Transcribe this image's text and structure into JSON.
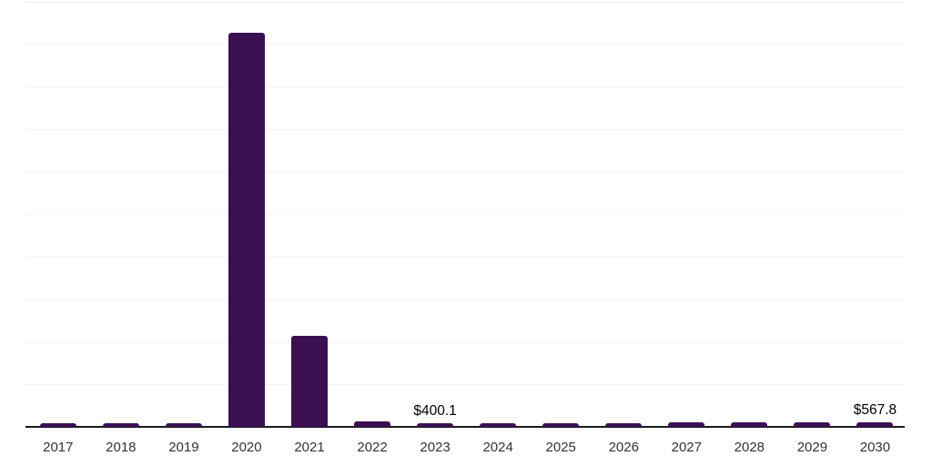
{
  "chart_data": {
    "type": "bar",
    "title": "",
    "xlabel": "",
    "ylabel": "",
    "categories": [
      "2017",
      "2018",
      "2019",
      "2020",
      "2021",
      "2022",
      "2023",
      "2024",
      "2025",
      "2026",
      "2027",
      "2028",
      "2029",
      "2030"
    ],
    "values": [
      400,
      400,
      405,
      46300,
      10700,
      660,
      400.1,
      420.5,
      442,
      464.5,
      488.2,
      513.1,
      539.3,
      567.8
    ],
    "data_labels": [
      {
        "category": "2023",
        "text": "$400.1"
      },
      {
        "category": "2030",
        "text": "$567.8"
      }
    ],
    "ylim": [
      0,
      50000
    ],
    "y_gridline_count": 10,
    "grid": "horizontal-only",
    "y_axis_tick_labels_visible": false,
    "legend_position": "none"
  },
  "colors": {
    "background": "#ffffff",
    "bar": "#3b1053",
    "axis_line": "#1a1a1a",
    "gridline": "#f2f2f3",
    "top_gridline": "#ececec",
    "x_label_text": "#333333",
    "value_label_text": "#000000"
  }
}
